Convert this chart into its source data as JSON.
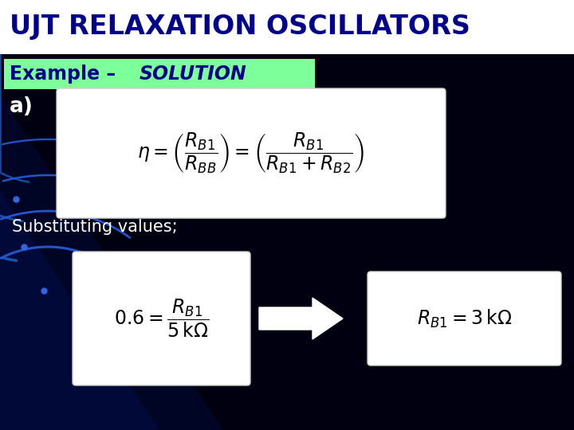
{
  "background_color": "#000000",
  "title_text": "UJT RELAXATION OSCILLATORS",
  "title_bg_color": "#ffffff",
  "title_text_color": "#00008B",
  "example_label": "Example – ",
  "solution_label": "SOLUTION",
  "example_bg_color": "#7dff99",
  "example_text_color": "#00008B",
  "label_a": "a)",
  "sub_text": "Substituting values;",
  "sub_text_color": "#ffffff",
  "formula1_box_color": "#ffffff",
  "formula2_box_color": "#ffffff",
  "formula3_box_color": "#ffffff",
  "title_fontsize": 24,
  "example_fontsize": 17,
  "formula1_fontsize": 17,
  "formula2_fontsize": 17,
  "formula3_fontsize": 17,
  "sub_fontsize": 15,
  "a_fontsize": 19
}
